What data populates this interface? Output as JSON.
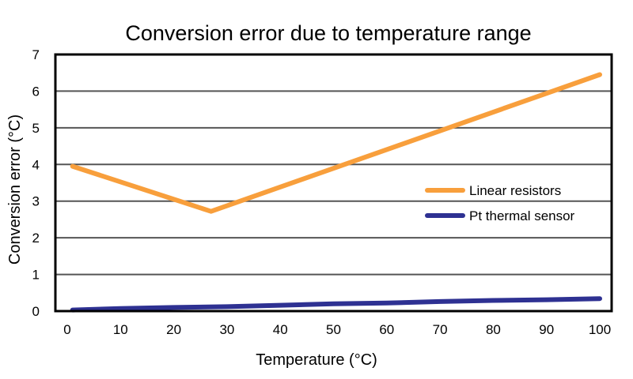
{
  "chart_data": {
    "type": "line",
    "title": "Conversion error due to temperature range",
    "xlabel": "Temperature (°C)",
    "ylabel": "Conversion error (°C)",
    "xlim": [
      0,
      100
    ],
    "ylim": [
      0,
      7
    ],
    "xticks": [
      0,
      10,
      20,
      30,
      40,
      50,
      60,
      70,
      80,
      90,
      100
    ],
    "yticks": [
      0,
      1,
      2,
      3,
      4,
      5,
      6,
      7
    ],
    "grid": "horizontal",
    "legend_position": "right",
    "series": [
      {
        "name": "Linear resistors",
        "color": "#f89f3c",
        "x": [
          1,
          27,
          100
        ],
        "y": [
          3.95,
          2.72,
          6.45
        ]
      },
      {
        "name": "Pt thermal sensor",
        "color": "#2e3192",
        "x": [
          1,
          10,
          20,
          30,
          40,
          50,
          60,
          70,
          80,
          90,
          100
        ],
        "y": [
          0.03,
          0.07,
          0.1,
          0.12,
          0.16,
          0.2,
          0.22,
          0.26,
          0.29,
          0.31,
          0.34
        ]
      }
    ]
  }
}
